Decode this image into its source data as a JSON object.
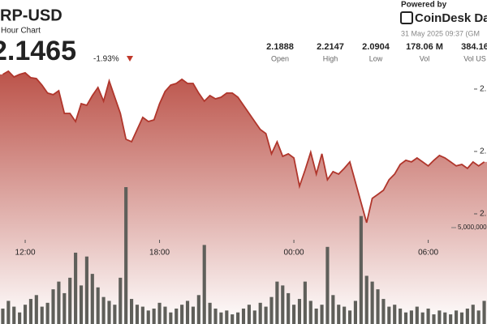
{
  "header": {
    "symbol": "RP-USD",
    "subtitle": "Hour Chart",
    "price": "2.1465",
    "change": "-1.93%"
  },
  "branding": {
    "powered": "Powered by",
    "logo": "CoinDesk Dat",
    "timestamp": "31 May 2025 09:37 (GM"
  },
  "stats": [
    {
      "value": "2.1888",
      "label": "Open"
    },
    {
      "value": "2.2147",
      "label": "High"
    },
    {
      "value": "2.0904",
      "label": "Low"
    },
    {
      "value": "178.06 M",
      "label": "Vol"
    },
    {
      "value": "384.16",
      "label": "Vol US"
    }
  ],
  "chart_data": {
    "type": "line",
    "categories": [
      null,
      null,
      null,
      null,
      "12:00",
      null,
      null,
      null,
      null,
      null,
      null,
      null,
      null,
      null,
      null,
      null,
      null,
      null,
      null,
      null,
      null,
      null,
      null,
      null,
      null,
      null,
      null,
      null,
      "18:00",
      null,
      null,
      null,
      null,
      null,
      null,
      null,
      null,
      null,
      null,
      null,
      null,
      null,
      null,
      null,
      null,
      null,
      null,
      null,
      null,
      null,
      null,
      null,
      "00:00",
      null,
      null,
      null,
      null,
      null,
      null,
      null,
      null,
      null,
      null,
      null,
      null,
      null,
      null,
      null,
      null,
      null,
      null,
      null,
      null,
      null,
      null,
      null,
      "06:00",
      null,
      null,
      null,
      null,
      null,
      null,
      null,
      null,
      null,
      null
    ],
    "series": [
      {
        "name": "Price",
        "color": "#b0362c",
        "values": [
          2.2117,
          2.2143,
          2.2097,
          2.2117,
          2.213,
          2.2091,
          2.2084,
          2.2032,
          2.1968,
          2.1955,
          2.1987,
          2.1805,
          2.1805,
          2.174,
          2.1883,
          2.187,
          2.1948,
          2.2013,
          2.1903,
          2.2065,
          2.1935,
          2.1805,
          2.1598,
          2.1578,
          2.1676,
          2.1773,
          2.174,
          2.1753,
          2.1883,
          2.1981,
          2.2032,
          2.2045,
          2.2078,
          2.2045,
          2.2045,
          2.1968,
          2.1903,
          2.1948,
          2.1922,
          2.1935,
          2.1968,
          2.1968,
          2.1935,
          2.187,
          2.1805,
          2.174,
          2.1676,
          2.1643,
          2.1481,
          2.1578,
          2.1461,
          2.1481,
          2.1448,
          2.1221,
          2.1351,
          2.1494,
          2.1319,
          2.1481,
          2.1273,
          2.1338,
          2.1319,
          2.1364,
          2.1416,
          2.1254,
          2.1091,
          2.0929,
          2.1124,
          2.1156,
          2.1189,
          2.1273,
          2.1319,
          2.1396,
          2.1429,
          2.1416,
          2.1448,
          2.1416,
          2.1384,
          2.1429,
          2.1468,
          2.1448,
          2.1416,
          2.1384,
          2.1396,
          2.1364,
          2.1416,
          2.1384,
          2.1416
        ]
      },
      {
        "name": "Volume",
        "color": "#5f5f5a",
        "axis": "y2",
        "values": [
          800000,
          1200000,
          900000,
          600000,
          1000000,
          1300000,
          1500000,
          900000,
          1100000,
          1800000,
          2200000,
          1600000,
          2400000,
          3700000,
          2000000,
          3500000,
          2600000,
          1900000,
          1400000,
          1200000,
          1000000,
          2400000,
          7100000,
          1300000,
          1000000,
          900000,
          700000,
          800000,
          1100000,
          900000,
          600000,
          800000,
          1000000,
          1200000,
          900000,
          1500000,
          4100000,
          1100000,
          800000,
          600000,
          700000,
          500000,
          600000,
          800000,
          1000000,
          700000,
          1100000,
          900000,
          1400000,
          2200000,
          2000000,
          1600000,
          1000000,
          1300000,
          2200000,
          1200000,
          800000,
          1000000,
          4000000,
          1500000,
          1000000,
          900000,
          700000,
          1200000,
          5600000,
          2500000,
          2200000,
          1800000,
          1300000,
          900000,
          1000000,
          800000,
          600000,
          700000,
          900000,
          600000,
          800000,
          500000,
          700000,
          600000,
          500000,
          700000,
          600000,
          800000,
          1000000,
          700000,
          1200000
        ]
      }
    ],
    "ylim": [
      2.0117,
      2.2162
    ],
    "yticks": [
      {
        "value": 2.2,
        "label": "2."
      },
      {
        "value": 2.15,
        "label": "2."
      },
      {
        "value": 2.1,
        "label": "2."
      }
    ],
    "y2lim": [
      0,
      13235000
    ],
    "y2ticks": [
      {
        "value": 5000000,
        "label": "5,000,000"
      }
    ],
    "grid": false
  }
}
